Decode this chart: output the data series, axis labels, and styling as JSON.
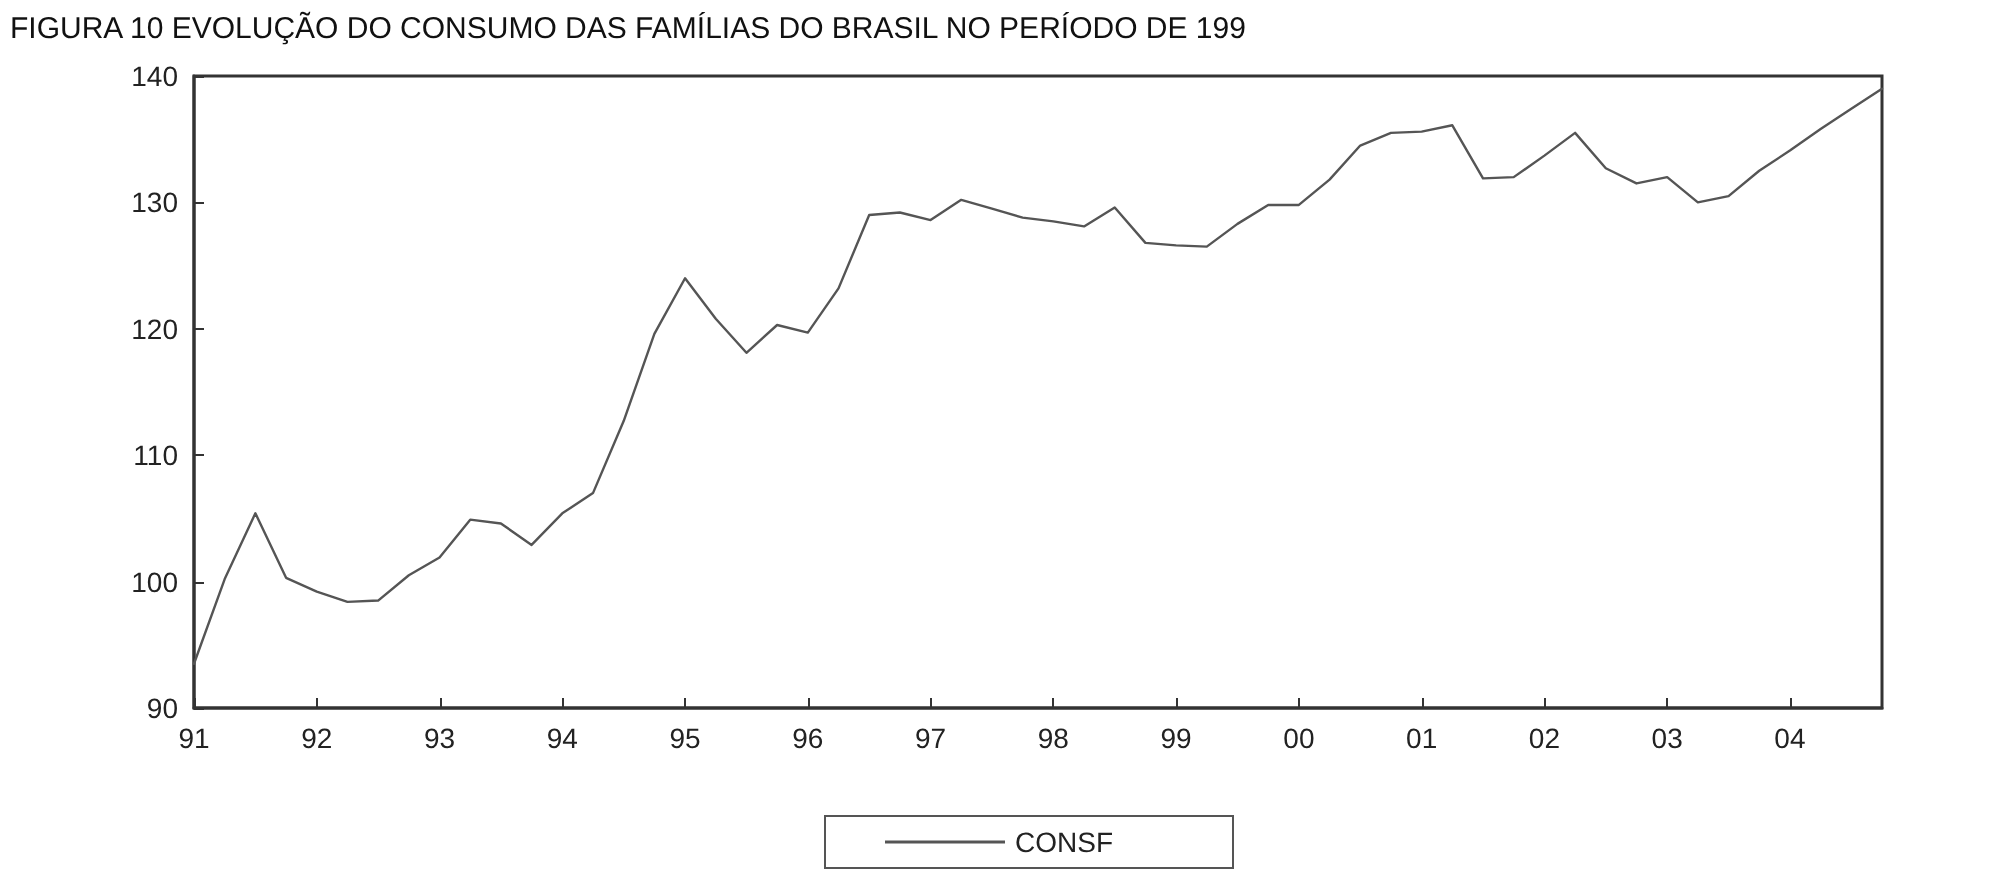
{
  "chart_data": {
    "type": "line",
    "title": "FIGURA 10 EVOLUÇÃO DO CONSUMO DAS FAMÍLIAS DO BRASIL NO PERÍODO DE 199",
    "x": [
      1991,
      1991.25,
      1991.5,
      1991.75,
      1992,
      1992.25,
      1992.5,
      1992.75,
      1993,
      1993.25,
      1993.5,
      1993.75,
      1994,
      1994.25,
      1994.5,
      1994.75,
      1995,
      1995.25,
      1995.5,
      1995.75,
      1996,
      1996.25,
      1996.5,
      1996.75,
      1997,
      1997.25,
      1997.5,
      1997.75,
      1998,
      1998.25,
      1998.5,
      1998.75,
      1999,
      1999.25,
      1999.5,
      1999.75,
      2000,
      2000.25,
      2000.5,
      2000.75,
      2001,
      2001.25,
      2001.5,
      2001.75,
      2002,
      2002.25,
      2002.5,
      2002.75,
      2003,
      2003.25,
      2003.5,
      2003.75,
      2004,
      2004.25,
      2004.5,
      2004.75
    ],
    "series": [
      {
        "name": "CONSF",
        "color": "#555555",
        "values": [
          93.5,
          100.2,
          105.4,
          100.3,
          99.2,
          98.4,
          98.5,
          100.5,
          101.9,
          104.9,
          104.6,
          102.9,
          105.4,
          107.0,
          112.7,
          119.6,
          124.0,
          120.8,
          118.1,
          120.3,
          119.7,
          123.2,
          129.0,
          129.2,
          128.6,
          130.2,
          129.5,
          128.8,
          128.5,
          128.1,
          129.6,
          126.8,
          126.6,
          126.5,
          128.3,
          129.8,
          129.8,
          131.8,
          134.5,
          135.5,
          135.6,
          136.1,
          131.9,
          132.0,
          133.7,
          135.5,
          132.7,
          131.5,
          132.0,
          130.0,
          130.5,
          132.5,
          134.1,
          135.8,
          137.4,
          139.0
        ]
      }
    ],
    "xlim": [
      1991,
      2004.75
    ],
    "xticks": [
      {
        "value": 1991,
        "label": "91"
      },
      {
        "value": 1992,
        "label": "92"
      },
      {
        "value": 1993,
        "label": "93"
      },
      {
        "value": 1994,
        "label": "94"
      },
      {
        "value": 1995,
        "label": "95"
      },
      {
        "value": 1996,
        "label": "96"
      },
      {
        "value": 1997,
        "label": "97"
      },
      {
        "value": 1998,
        "label": "98"
      },
      {
        "value": 1999,
        "label": "99"
      },
      {
        "value": 2000,
        "label": "00"
      },
      {
        "value": 2001,
        "label": "01"
      },
      {
        "value": 2002,
        "label": "02"
      },
      {
        "value": 2003,
        "label": "03"
      },
      {
        "value": 2004,
        "label": "04"
      }
    ],
    "ylim": [
      90,
      140
    ],
    "yticks": [
      90,
      100,
      110,
      120,
      130,
      140
    ],
    "grid": false,
    "legend": "bottom",
    "marker": "none",
    "line_style": "solid"
  }
}
